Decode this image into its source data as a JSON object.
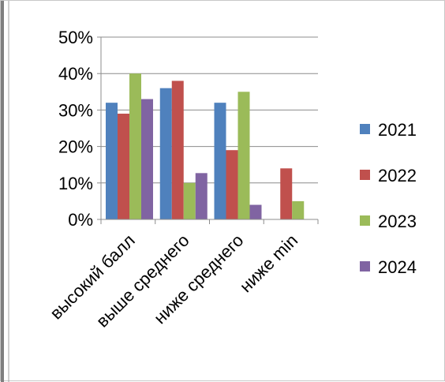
{
  "chart_data": {
    "type": "bar",
    "categories": [
      "высокий балл",
      "выше среднего",
      "ниже среднего",
      "ниже min"
    ],
    "series": [
      {
        "name": "2021",
        "color": "#4F81BD",
        "values": [
          0.32,
          0.36,
          0.32,
          0.0
        ]
      },
      {
        "name": "2022",
        "color": "#C0504D",
        "values": [
          0.29,
          0.38,
          0.19,
          0.14
        ]
      },
      {
        "name": "2023",
        "color": "#9BBB59",
        "values": [
          0.4,
          0.1,
          0.35,
          0.05
        ]
      },
      {
        "name": "2024",
        "color": "#8064A2",
        "values": [
          0.33,
          0.127,
          0.04,
          0.0
        ]
      }
    ],
    "yticks": [
      "0%",
      "10%",
      "20%",
      "30%",
      "40%",
      "50%"
    ],
    "ylim": [
      0,
      0.5
    ],
    "grid": true,
    "legend": "right",
    "title": "",
    "xlabel": "",
    "ylabel": ""
  }
}
